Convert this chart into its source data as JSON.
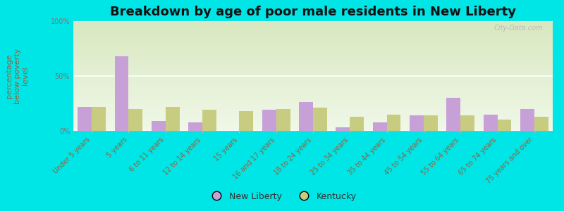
{
  "title": "Breakdown by age of poor male residents in New Liberty",
  "ylabel": "percentage\nbelow poverty\nlevel",
  "categories": [
    "Under 5 years",
    "5 years",
    "6 to 11 years",
    "12 to 14 years",
    "15 years",
    "16 and 17 years",
    "18 to 24 years",
    "25 to 34 years",
    "35 to 44 years",
    "45 to 54 years",
    "55 to 64 years",
    "65 to 74 years",
    "75 years and over"
  ],
  "new_liberty": [
    22,
    68,
    9,
    8,
    0,
    19,
    26,
    3,
    8,
    14,
    30,
    15,
    20
  ],
  "kentucky": [
    22,
    20,
    22,
    19,
    18,
    20,
    21,
    13,
    15,
    14,
    14,
    10,
    13
  ],
  "new_liberty_color": "#c8a0d8",
  "kentucky_color": "#c8cc80",
  "outer_bg": "#00e5e5",
  "plot_bg_top": "#d8e8c0",
  "plot_bg_bottom": "#f0f8e8",
  "ylim": [
    0,
    100
  ],
  "yticks": [
    0,
    50,
    100
  ],
  "ytick_labels": [
    "0%",
    "50%",
    "100%"
  ],
  "title_fontsize": 13,
  "axis_label_fontsize": 8,
  "tick_fontsize": 7,
  "legend_fontsize": 9,
  "bar_width": 0.38,
  "grid_color": "#ffffff",
  "text_color": "#777777",
  "xlabel_color": "#886644"
}
